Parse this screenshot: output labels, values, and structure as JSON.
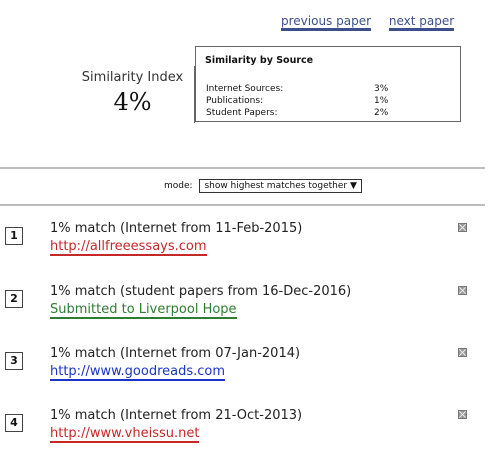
{
  "nav": {
    "previous": "previous paper",
    "next": "next paper"
  },
  "similarity": {
    "label": "Similarity Index",
    "value": "4%"
  },
  "by_source": {
    "title": "Similarity by Source",
    "rows": [
      {
        "label": "Internet Sources:",
        "value": "3%"
      },
      {
        "label": "Publications:",
        "value": "1%"
      },
      {
        "label": "Student Papers:",
        "value": "2%"
      }
    ]
  },
  "mode": {
    "label": "mode:",
    "selected": "show highest matches together ▼"
  },
  "matches": [
    {
      "num": "1",
      "text": "1% match (Internet from 11-Feb-2015)",
      "link": "http://allfreeessays.com",
      "color": "#c62828"
    },
    {
      "num": "2",
      "text": "1% match (student papers from 16-Dec-2016)",
      "link": "Submitted to Liverpool Hope",
      "color": "#2e7d32"
    },
    {
      "num": "3",
      "text": "1% match (Internet from 07-Jan-2014)",
      "link": "http://www.goodreads.com",
      "color": "#1a33c8"
    },
    {
      "num": "4",
      "text": "1% match (Internet from 21-Oct-2013)",
      "link": "http://www.vheissu.net",
      "color": "#c62828"
    }
  ]
}
